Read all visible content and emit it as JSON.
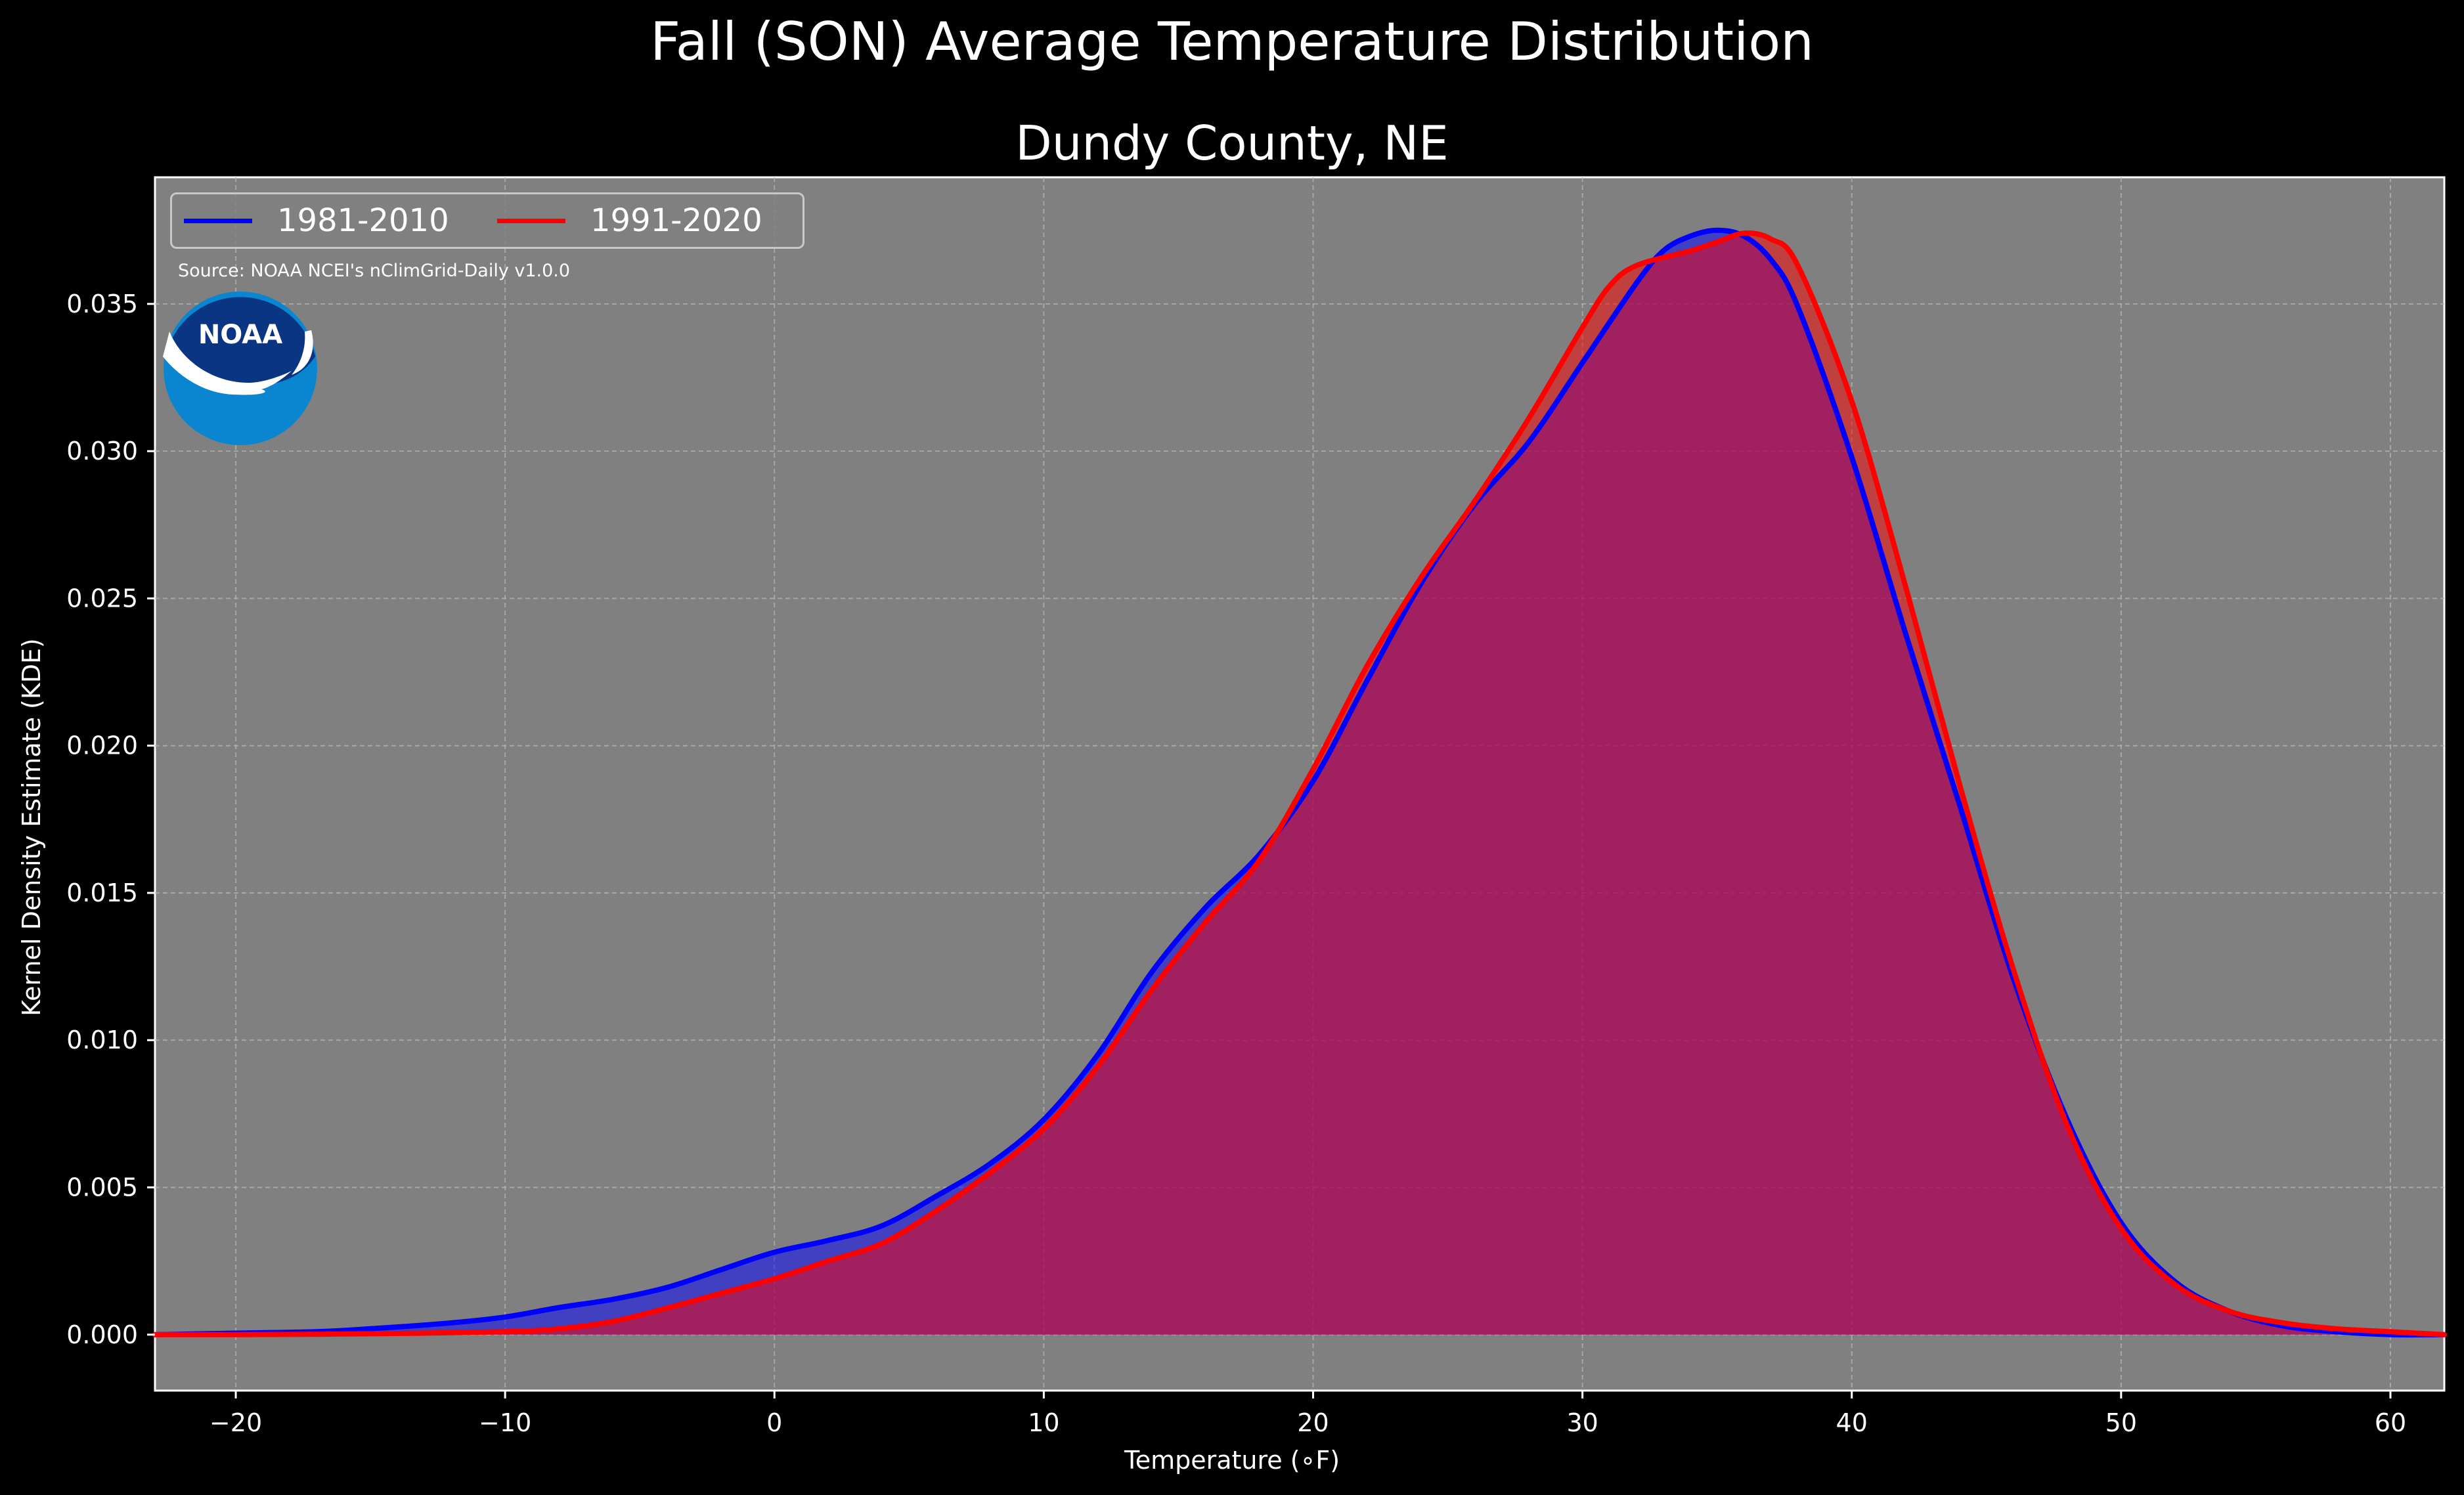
{
  "title": "Fall (SON) Average Temperature Distribution",
  "subtitle": "Dundy County, NE",
  "source_note": "Source: NOAA NCEI's nClimGrid-Daily v1.0.0",
  "logo_text": "NOAA",
  "colors": {
    "background": "#000000",
    "plot_background": "#808080",
    "series_1981_2010": "#0000ff",
    "series_1991_2020": "#ff0000",
    "overlap_fill": "#9e1f5c",
    "logo_dark": "#0a3582",
    "logo_light": "#0a86d0"
  },
  "chart_data": {
    "type": "area",
    "title": "Dundy County, NE",
    "xlabel": "Temperature (∘F)",
    "ylabel": "Kernel Density Estimate (KDE)",
    "xlim": [
      -23,
      62
    ],
    "ylim": [
      -0.0019,
      0.0393
    ],
    "xticks": [
      -20,
      -10,
      0,
      10,
      20,
      30,
      40,
      50,
      60
    ],
    "yticks": [
      0.0,
      0.005,
      0.01,
      0.015,
      0.02,
      0.025,
      0.03,
      0.035
    ],
    "xtick_labels": [
      "−20",
      "−10",
      "0",
      "10",
      "20",
      "30",
      "40",
      "50",
      "60"
    ],
    "ytick_labels": [
      "0.000",
      "0.005",
      "0.010",
      "0.015",
      "0.020",
      "0.025",
      "0.030",
      "0.035"
    ],
    "grid": true,
    "legend_position": "top-left",
    "series": [
      {
        "name": "1981-2010",
        "color": "#0000ff",
        "x": [
          -23,
          -20,
          -17,
          -15,
          -12,
          -10,
          -8,
          -6,
          -4,
          -2,
          0,
          2,
          4,
          6,
          8,
          10,
          12,
          14,
          16,
          18,
          20,
          22,
          24,
          26,
          28,
          30,
          32,
          33,
          34,
          35,
          36,
          37,
          38,
          40,
          42,
          44,
          46,
          48,
          50,
          52,
          54,
          56,
          58,
          60,
          62
        ],
        "y": [
          0.0,
          5e-05,
          0.0001,
          0.0002,
          0.0004,
          0.0006,
          0.00092,
          0.0012,
          0.0016,
          0.0022,
          0.0028,
          0.0032,
          0.0037,
          0.0047,
          0.0058,
          0.0073,
          0.0095,
          0.0123,
          0.0145,
          0.0163,
          0.0188,
          0.0222,
          0.0255,
          0.0282,
          0.0303,
          0.033,
          0.0357,
          0.0368,
          0.0373,
          0.0375,
          0.0373,
          0.0365,
          0.0349,
          0.0298,
          0.0238,
          0.018,
          0.0121,
          0.0073,
          0.0038,
          0.0018,
          0.0008,
          0.0003,
          0.0001,
          0.0,
          0.0
        ]
      },
      {
        "name": "1991-2020",
        "color": "#ff0000",
        "x": [
          -23,
          -20,
          -15,
          -10,
          -8,
          -6,
          -4,
          -2,
          0,
          2,
          4,
          6,
          8,
          10,
          12,
          14,
          16,
          18,
          20,
          22,
          24,
          26,
          28,
          30,
          31,
          32,
          34,
          35,
          36,
          37,
          38,
          40,
          42,
          44,
          46,
          48,
          50,
          52,
          54,
          56,
          58,
          60,
          62
        ],
        "y": [
          0.0,
          0.0,
          3e-05,
          0.0001,
          0.0002,
          0.00045,
          0.0009,
          0.0014,
          0.0019,
          0.0025,
          0.0031,
          0.0042,
          0.0055,
          0.007,
          0.0091,
          0.0117,
          0.014,
          0.0161,
          0.0192,
          0.0227,
          0.0257,
          0.0283,
          0.0311,
          0.0342,
          0.0356,
          0.0363,
          0.0368,
          0.0371,
          0.0374,
          0.0372,
          0.0363,
          0.0317,
          0.0254,
          0.0187,
          0.0124,
          0.0071,
          0.0036,
          0.0017,
          0.0008,
          0.0004,
          0.0002,
          0.0001,
          0.0
        ]
      }
    ]
  }
}
